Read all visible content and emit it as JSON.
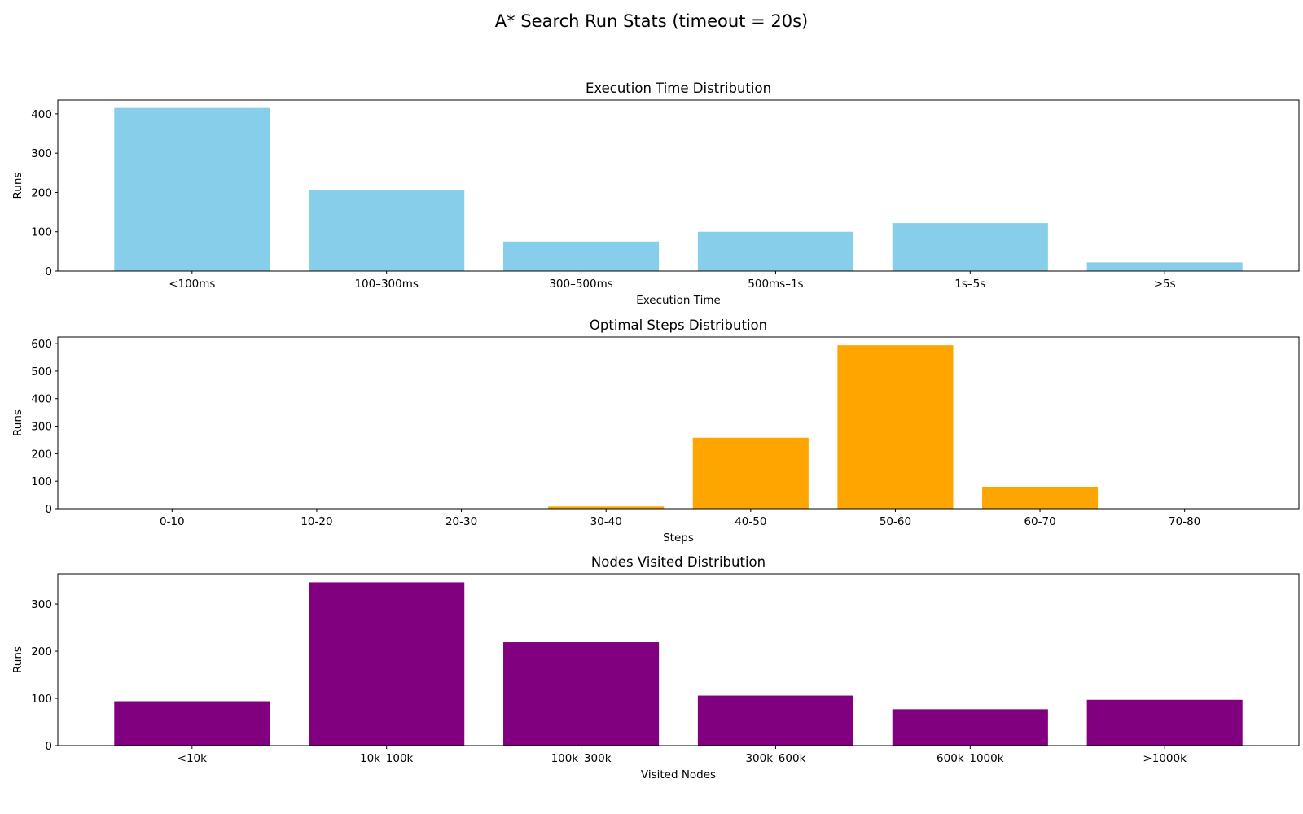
{
  "figure": {
    "title": "A* Search Run Stats (timeout = 20s)"
  },
  "chart_data": [
    {
      "type": "bar",
      "title": "Execution Time Distribution",
      "xlabel": "Execution Time",
      "ylabel": "Runs",
      "categories": [
        "<100ms",
        "100–300ms",
        "300–500ms",
        "500ms–1s",
        "1s–5s",
        ">5s"
      ],
      "values": [
        415,
        205,
        75,
        100,
        122,
        22
      ],
      "ylim": [
        0,
        435
      ],
      "yticks": [
        0,
        100,
        200,
        300,
        400
      ],
      "color": "#87ceeb",
      "grid": false
    },
    {
      "type": "bar",
      "title": "Optimal Steps Distribution",
      "xlabel": "Steps",
      "ylabel": "Runs",
      "categories": [
        "0-10",
        "10-20",
        "20-30",
        "30-40",
        "40-50",
        "50-60",
        "60-70",
        "70-80"
      ],
      "values": [
        0,
        0,
        0,
        8,
        258,
        594,
        80,
        0
      ],
      "ylim": [
        0,
        624
      ],
      "yticks": [
        0,
        100,
        200,
        300,
        400,
        500,
        600
      ],
      "color": "#ffa500",
      "grid": false
    },
    {
      "type": "bar",
      "title": "Nodes Visited Distribution",
      "xlabel": "Visited Nodes",
      "ylabel": "Runs",
      "categories": [
        "<10k",
        "10k–100k",
        "100k–300k",
        "300k–600k",
        "600k–1000k",
        ">1000k"
      ],
      "values": [
        94,
        346,
        219,
        106,
        77,
        97
      ],
      "ylim": [
        0,
        364
      ],
      "yticks": [
        0,
        100,
        200,
        300
      ],
      "color": "#800080",
      "grid": false
    }
  ]
}
